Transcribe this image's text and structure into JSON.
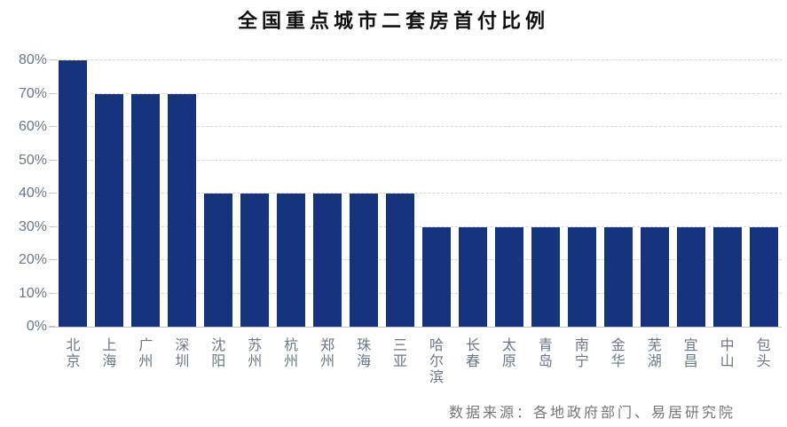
{
  "chart_data": {
    "type": "bar",
    "title": "全国重点城市二套房首付比例",
    "categories": [
      "北京",
      "上海",
      "广州",
      "深圳",
      "沈阳",
      "苏州",
      "杭州",
      "郑州",
      "珠海",
      "三亚",
      "哈尔滨",
      "长春",
      "太原",
      "青岛",
      "南宁",
      "金华",
      "芜湖",
      "宜昌",
      "中山",
      "包头"
    ],
    "values": [
      80,
      70,
      70,
      70,
      40,
      40,
      40,
      40,
      40,
      40,
      30,
      30,
      30,
      30,
      30,
      30,
      30,
      30,
      30,
      30
    ],
    "unit": "%",
    "ylim": [
      0,
      80
    ],
    "ytick_step": 10,
    "ytick_labels": [
      "0%",
      "10%",
      "20%",
      "30%",
      "40%",
      "50%",
      "60%",
      "70%",
      "80%"
    ],
    "grid": "dashed-horizontal",
    "legend": "none",
    "source": "数据来源：各地政府部门、易居研究院",
    "colors": {
      "bar": "#16337e",
      "gridline": "#d6d6d6",
      "axis_line": "#c2c2c2",
      "axis_label": "#6b7889",
      "title": "#111111",
      "source_text": "#767676",
      "background": "#ffffff"
    }
  }
}
